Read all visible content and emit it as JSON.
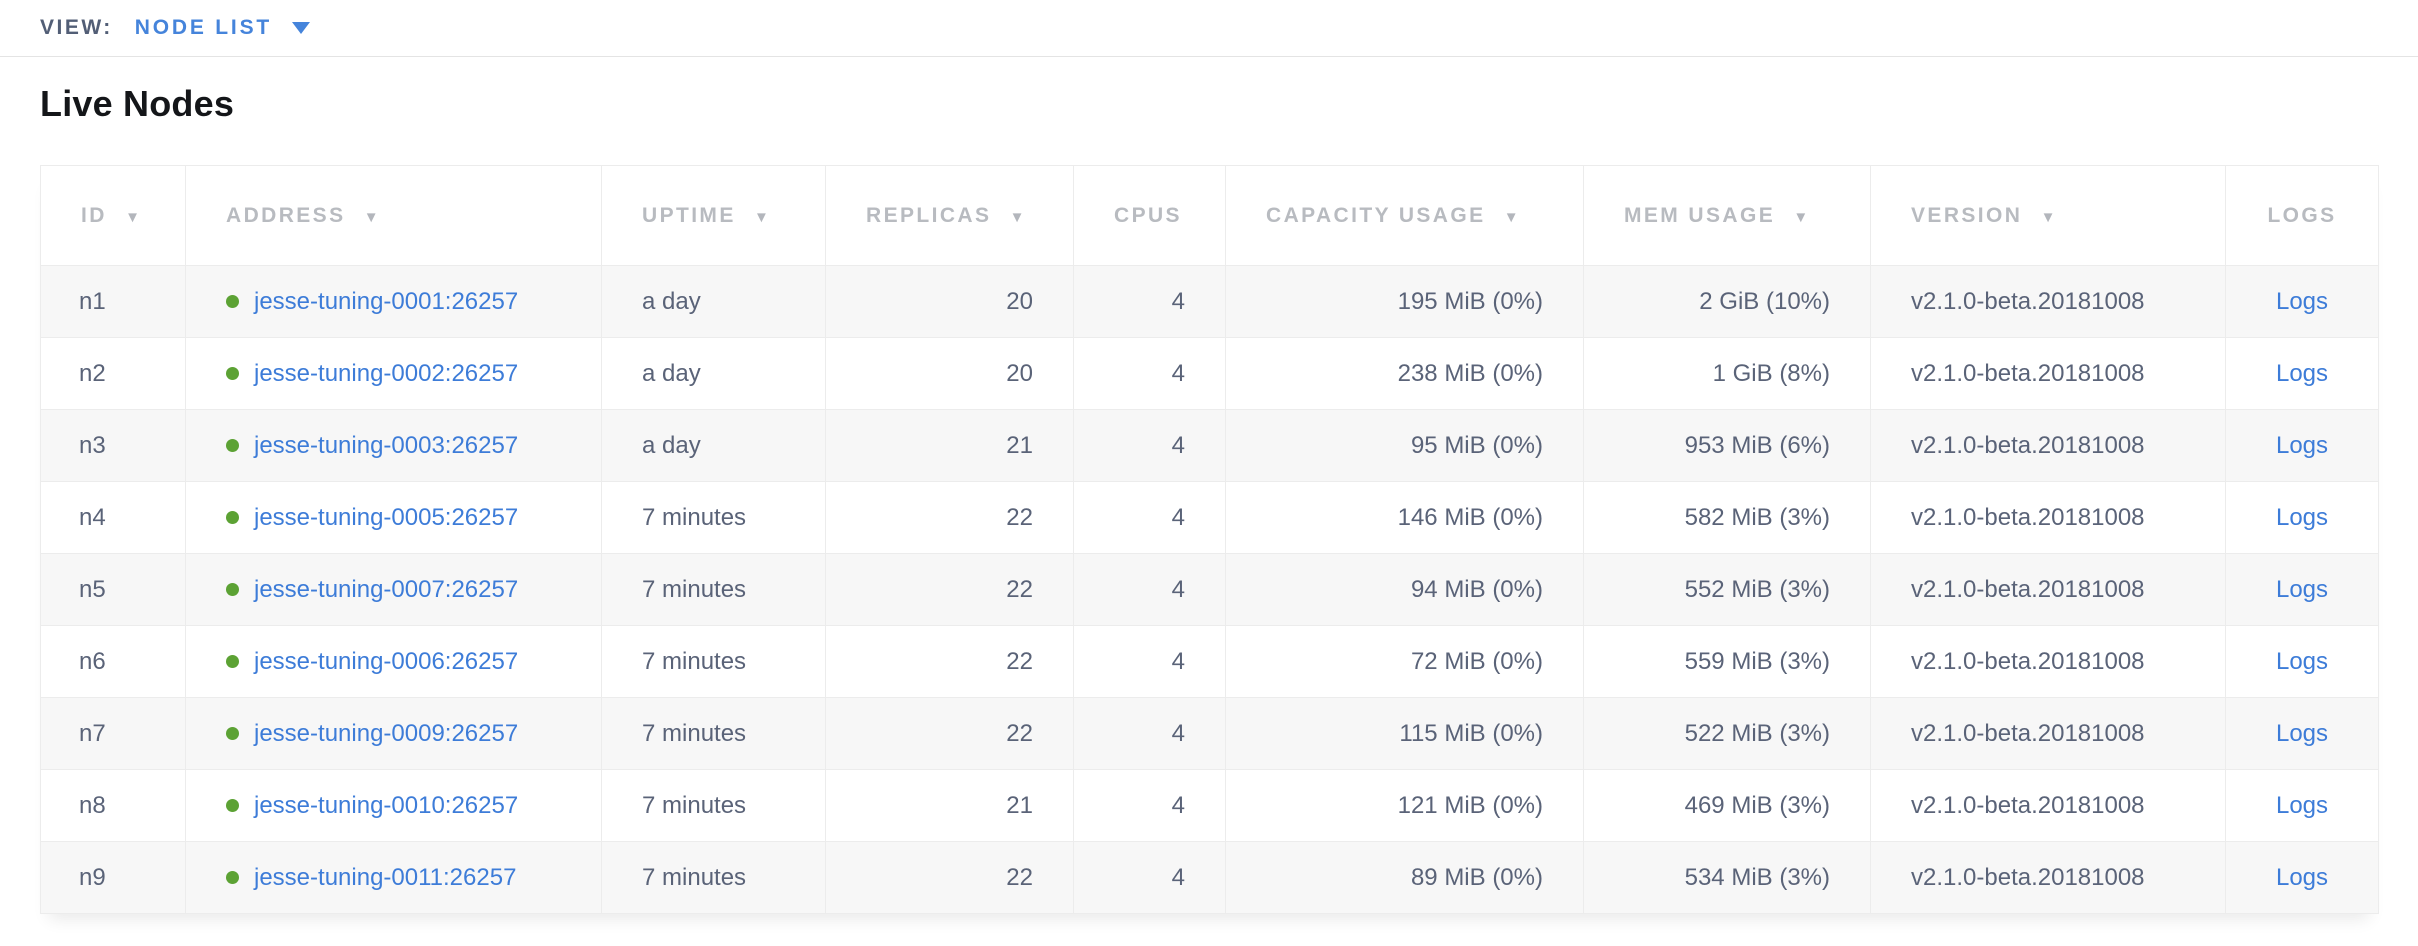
{
  "topbar": {
    "view_label": "VIEW:",
    "view_value": "NODE LIST"
  },
  "section": {
    "title": "Live Nodes"
  },
  "colors": {
    "accent_blue": "#4584db",
    "link_blue": "#3d7cd8",
    "healthy_green": "#5ca234",
    "header_gray": "#b8bbc0",
    "body_slate": "#5a6378",
    "row_alt_gray": "#f7f7f7"
  },
  "table": {
    "sort_indicator": "▼",
    "columns": [
      {
        "label": "ID",
        "sortable": true,
        "align": "left"
      },
      {
        "label": "ADDRESS",
        "sortable": true,
        "align": "left"
      },
      {
        "label": "UPTIME",
        "sortable": true,
        "align": "left"
      },
      {
        "label": "REPLICAS",
        "sortable": true,
        "align": "right"
      },
      {
        "label": "CPUS",
        "sortable": false,
        "align": "right"
      },
      {
        "label": "CAPACITY USAGE",
        "sortable": true,
        "align": "right"
      },
      {
        "label": "MEM USAGE",
        "sortable": true,
        "align": "right"
      },
      {
        "label": "VERSION",
        "sortable": true,
        "align": "left"
      },
      {
        "label": "LOGS",
        "sortable": false,
        "align": "center"
      }
    ],
    "rows": [
      {
        "id": "n1",
        "status": "healthy",
        "address": "jesse-tuning-0001:26257",
        "uptime": "a day",
        "replicas": "20",
        "cpus": "4",
        "capacity_usage": "195 MiB (0%)",
        "mem_usage": "2 GiB (10%)",
        "version": "v2.1.0-beta.20181008",
        "logs_label": "Logs"
      },
      {
        "id": "n2",
        "status": "healthy",
        "address": "jesse-tuning-0002:26257",
        "uptime": "a day",
        "replicas": "20",
        "cpus": "4",
        "capacity_usage": "238 MiB (0%)",
        "mem_usage": "1 GiB (8%)",
        "version": "v2.1.0-beta.20181008",
        "logs_label": "Logs"
      },
      {
        "id": "n3",
        "status": "healthy",
        "address": "jesse-tuning-0003:26257",
        "uptime": "a day",
        "replicas": "21",
        "cpus": "4",
        "capacity_usage": "95 MiB (0%)",
        "mem_usage": "953 MiB (6%)",
        "version": "v2.1.0-beta.20181008",
        "logs_label": "Logs"
      },
      {
        "id": "n4",
        "status": "healthy",
        "address": "jesse-tuning-0005:26257",
        "uptime": "7 minutes",
        "replicas": "22",
        "cpus": "4",
        "capacity_usage": "146 MiB (0%)",
        "mem_usage": "582 MiB (3%)",
        "version": "v2.1.0-beta.20181008",
        "logs_label": "Logs"
      },
      {
        "id": "n5",
        "status": "healthy",
        "address": "jesse-tuning-0007:26257",
        "uptime": "7 minutes",
        "replicas": "22",
        "cpus": "4",
        "capacity_usage": "94 MiB (0%)",
        "mem_usage": "552 MiB (3%)",
        "version": "v2.1.0-beta.20181008",
        "logs_label": "Logs"
      },
      {
        "id": "n6",
        "status": "healthy",
        "address": "jesse-tuning-0006:26257",
        "uptime": "7 minutes",
        "replicas": "22",
        "cpus": "4",
        "capacity_usage": "72 MiB (0%)",
        "mem_usage": "559 MiB (3%)",
        "version": "v2.1.0-beta.20181008",
        "logs_label": "Logs"
      },
      {
        "id": "n7",
        "status": "healthy",
        "address": "jesse-tuning-0009:26257",
        "uptime": "7 minutes",
        "replicas": "22",
        "cpus": "4",
        "capacity_usage": "115 MiB (0%)",
        "mem_usage": "522 MiB (3%)",
        "version": "v2.1.0-beta.20181008",
        "logs_label": "Logs"
      },
      {
        "id": "n8",
        "status": "healthy",
        "address": "jesse-tuning-0010:26257",
        "uptime": "7 minutes",
        "replicas": "21",
        "cpus": "4",
        "capacity_usage": "121 MiB (0%)",
        "mem_usage": "469 MiB (3%)",
        "version": "v2.1.0-beta.20181008",
        "logs_label": "Logs"
      },
      {
        "id": "n9",
        "status": "healthy",
        "address": "jesse-tuning-0011:26257",
        "uptime": "7 minutes",
        "replicas": "22",
        "cpus": "4",
        "capacity_usage": "89 MiB (0%)",
        "mem_usage": "534 MiB (3%)",
        "version": "v2.1.0-beta.20181008",
        "logs_label": "Logs"
      }
    ]
  }
}
